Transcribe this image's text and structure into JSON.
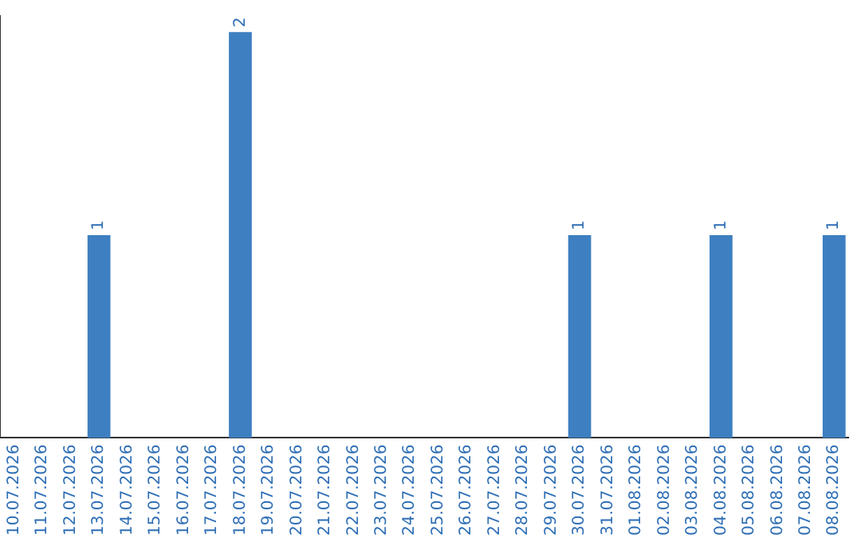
{
  "chart_data": {
    "type": "bar",
    "categories": [
      "10.07.2026",
      "11.07.2026",
      "12.07.2026",
      "13.07.2026",
      "14.07.2026",
      "15.07.2026",
      "16.07.2026",
      "17.07.2026",
      "18.07.2026",
      "19.07.2026",
      "20.07.2026",
      "21.07.2026",
      "22.07.2026",
      "23.07.2026",
      "24.07.2026",
      "25.07.2026",
      "26.07.2026",
      "27.07.2026",
      "28.07.2026",
      "29.07.2026",
      "30.07.2026",
      "31.07.2026",
      "01.08.2026",
      "02.08.2026",
      "03.08.2026",
      "04.08.2026",
      "05.08.2026",
      "06.08.2026",
      "07.08.2026",
      "08.08.2026"
    ],
    "values": [
      0,
      0,
      0,
      1,
      0,
      0,
      0,
      0,
      2,
      0,
      0,
      0,
      0,
      0,
      0,
      0,
      0,
      0,
      0,
      0,
      1,
      0,
      0,
      0,
      0,
      1,
      0,
      0,
      0,
      1
    ],
    "value_labels": [
      null,
      null,
      null,
      "1",
      null,
      null,
      null,
      null,
      "2",
      null,
      null,
      null,
      null,
      null,
      null,
      null,
      null,
      null,
      null,
      null,
      "1",
      null,
      null,
      null,
      null,
      "1",
      null,
      null,
      null,
      "1"
    ],
    "color": "#3d7fc1",
    "ylim": [
      0,
      2.08
    ],
    "tick_labels": "x",
    "grid": false,
    "legend": false
  }
}
